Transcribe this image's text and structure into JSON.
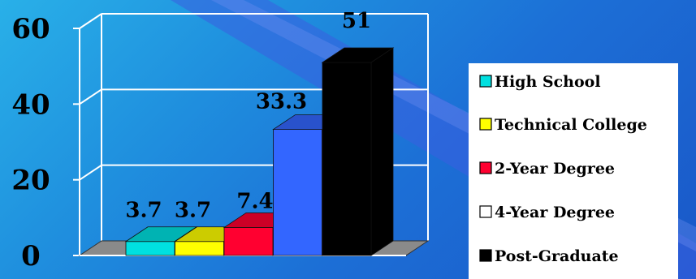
{
  "chart_data": {
    "type": "bar",
    "categories": [
      "High School",
      "Technical College",
      "2-Year Degree",
      "4-Year Degree",
      "Post-Graduate"
    ],
    "values": [
      3.7,
      3.7,
      7.4,
      33.3,
      51
    ],
    "value_labels": [
      "3.7",
      "3.7",
      "7.4",
      "33.3",
      "51"
    ],
    "colors": [
      "#00e0e0",
      "#ffff00",
      "#ff0030",
      "#3366ff",
      "#000000"
    ],
    "yticks": [
      "0",
      "20",
      "40",
      "60"
    ],
    "ylim": [
      0,
      60
    ],
    "grid": true,
    "legend": {
      "position": "right",
      "items": [
        "High School",
        "Technical College",
        "2-Year Degree",
        "4-Year Degree",
        "Post-Graduate"
      ],
      "swatch_colors": [
        "#00e0e0",
        "#ffff00",
        "#ff0030",
        "#ffffff",
        "#000000"
      ]
    }
  }
}
